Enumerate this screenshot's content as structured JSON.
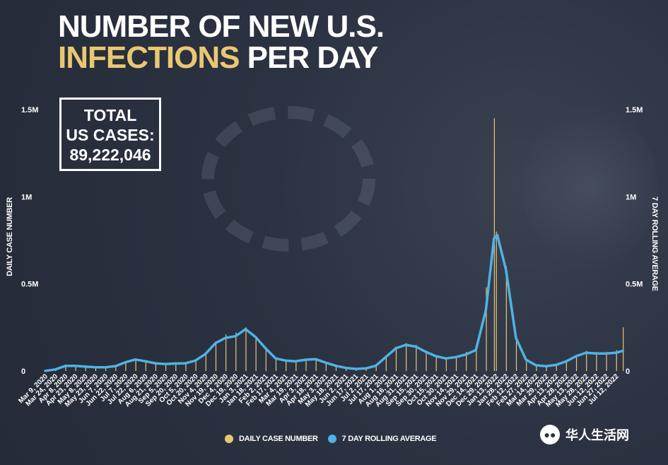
{
  "title": {
    "line1": "NUMBER OF NEW U.S.",
    "line2_highlight": "INFECTIONS",
    "line2_rest": " PER DAY"
  },
  "total_box": {
    "line1": "TOTAL",
    "line2": "US CASES:",
    "value": "89,222,046"
  },
  "legend": {
    "daily": "DAILY CASE NUMBER",
    "rolling": "7 DAY ROLLING AVERAGE"
  },
  "watermark": {
    "text": "华人生活网",
    "icon": "wechat-icon"
  },
  "colors": {
    "background": "#2b3241",
    "bars": "#e9c873",
    "line": "#4fb3e6",
    "title_highlight": "#e9c873",
    "text": "#ffffff"
  },
  "chart_data": {
    "type": "bar+line",
    "y_axis_left_title": "DAILY CASE NUMBER",
    "y_axis_right_title": "7 DAY ROLLING AVERAGE",
    "y_ticks": [
      {
        "value": 0,
        "label": "0"
      },
      {
        "value": 500000,
        "label": "0.5M"
      },
      {
        "value": 1000000,
        "label": "1M"
      },
      {
        "value": 1500000,
        "label": "1.5M"
      }
    ],
    "ylim": [
      0,
      1500000
    ],
    "xlim": [
      "2020-03-09",
      "2022-07-23"
    ],
    "x_ticks": [
      "Mar 9, 2020",
      "Mar 24, 2020",
      "Apr 8, 2020",
      "Apr 23, 2020",
      "May 8, 2020",
      "May 23, 2020",
      "Jun 7, 2020",
      "Jun 22, 2020",
      "Jul 7, 2020",
      "Jul 22, 2020",
      "Aug 6, 2020",
      "Aug 21, 2020",
      "Sep 5, 2020",
      "Sep 20, 2020",
      "Oct 5, 2020",
      "Oct 20, 2020",
      "Nov 4, 2020",
      "Nov 19, 2020",
      "Dec 4, 2020",
      "Dec 19, 2020",
      "Jan 3, 2021",
      "Jan 18, 2021",
      "Feb 2, 2021",
      "Feb 17, 2021",
      "Mar 4, 2021",
      "Mar 19, 2021",
      "Apr 3, 2021",
      "Apr 18, 2021",
      "May 3, 2021",
      "May 18, 2021",
      "Jun 2, 2021",
      "Jun 17, 2021",
      "Jul 2, 2021",
      "Jul 17, 2021",
      "Aug 1, 2021",
      "Aug 16, 2021",
      "Aug 31, 2021",
      "Sep 15, 2021",
      "Sep 30, 2021",
      "Oct 15, 2021",
      "Oct 30, 2021",
      "Nov 14, 2021",
      "Nov 29, 2021",
      "Dec 14, 2021",
      "Dec 29, 2021",
      "Jan 13, 2022",
      "Jan 28, 2022",
      "Feb 12, 2022",
      "Feb 27, 2022",
      "Mar 14, 2022",
      "Mar 29, 2022",
      "Apr 13, 2022",
      "Apr 28, 2022",
      "May 13, 2022",
      "May 28, 2022",
      "Jun 12, 2022",
      "Jun 27, 2022",
      "Jul 12, 2022"
    ],
    "series": [
      {
        "name": "DAILY CASE NUMBER",
        "kind": "bar",
        "points": [
          [
            "2020-03-09",
            1000
          ],
          [
            "2020-03-24",
            11000
          ],
          [
            "2020-04-08",
            31000
          ],
          [
            "2020-04-23",
            29000
          ],
          [
            "2020-05-08",
            26000
          ],
          [
            "2020-05-23",
            22000
          ],
          [
            "2020-06-07",
            20000
          ],
          [
            "2020-06-22",
            30000
          ],
          [
            "2020-07-07",
            55000
          ],
          [
            "2020-07-22",
            67000
          ],
          [
            "2020-08-06",
            55000
          ],
          [
            "2020-08-21",
            45000
          ],
          [
            "2020-09-05",
            40000
          ],
          [
            "2020-09-20",
            44000
          ],
          [
            "2020-10-05",
            45000
          ],
          [
            "2020-10-20",
            62000
          ],
          [
            "2020-11-04",
            105000
          ],
          [
            "2020-11-19",
            170000
          ],
          [
            "2020-12-04",
            210000
          ],
          [
            "2020-12-19",
            220000
          ],
          [
            "2021-01-03",
            250000
          ],
          [
            "2021-01-18",
            200000
          ],
          [
            "2021-02-02",
            130000
          ],
          [
            "2021-02-17",
            75000
          ],
          [
            "2021-03-04",
            65000
          ],
          [
            "2021-03-19",
            60000
          ],
          [
            "2021-04-03",
            70000
          ],
          [
            "2021-04-18",
            72000
          ],
          [
            "2021-05-03",
            50000
          ],
          [
            "2021-05-18",
            30000
          ],
          [
            "2021-06-02",
            18000
          ],
          [
            "2021-06-17",
            12000
          ],
          [
            "2021-07-02",
            18000
          ],
          [
            "2021-07-17",
            35000
          ],
          [
            "2021-08-01",
            90000
          ],
          [
            "2021-08-16",
            140000
          ],
          [
            "2021-08-31",
            160000
          ],
          [
            "2021-09-15",
            150000
          ],
          [
            "2021-09-30",
            115000
          ],
          [
            "2021-10-15",
            90000
          ],
          [
            "2021-10-30",
            75000
          ],
          [
            "2021-11-14",
            85000
          ],
          [
            "2021-11-29",
            110000
          ],
          [
            "2021-12-14",
            130000
          ],
          [
            "2021-12-29",
            480000
          ],
          [
            "2022-01-10",
            1450000
          ],
          [
            "2022-01-13",
            800000
          ],
          [
            "2022-01-28",
            600000
          ],
          [
            "2022-02-12",
            200000
          ],
          [
            "2022-02-27",
            70000
          ],
          [
            "2022-03-14",
            35000
          ],
          [
            "2022-03-29",
            28000
          ],
          [
            "2022-04-13",
            35000
          ],
          [
            "2022-04-28",
            60000
          ],
          [
            "2022-05-13",
            90000
          ],
          [
            "2022-05-28",
            115000
          ],
          [
            "2022-06-12",
            110000
          ],
          [
            "2022-06-27",
            110000
          ],
          [
            "2022-07-12",
            120000
          ],
          [
            "2022-07-22",
            250000
          ]
        ]
      },
      {
        "name": "7 DAY ROLLING AVERAGE",
        "kind": "line",
        "points": [
          [
            "2020-03-09",
            1000
          ],
          [
            "2020-03-24",
            9000
          ],
          [
            "2020-04-08",
            29000
          ],
          [
            "2020-04-23",
            29000
          ],
          [
            "2020-05-08",
            25000
          ],
          [
            "2020-05-23",
            22000
          ],
          [
            "2020-06-07",
            21000
          ],
          [
            "2020-06-22",
            28000
          ],
          [
            "2020-07-07",
            50000
          ],
          [
            "2020-07-22",
            66000
          ],
          [
            "2020-08-06",
            56000
          ],
          [
            "2020-08-21",
            44000
          ],
          [
            "2020-09-05",
            40000
          ],
          [
            "2020-09-20",
            43000
          ],
          [
            "2020-10-05",
            44000
          ],
          [
            "2020-10-20",
            60000
          ],
          [
            "2020-11-04",
            98000
          ],
          [
            "2020-11-19",
            160000
          ],
          [
            "2020-12-04",
            190000
          ],
          [
            "2020-12-19",
            200000
          ],
          [
            "2021-01-03",
            240000
          ],
          [
            "2021-01-18",
            195000
          ],
          [
            "2021-02-02",
            130000
          ],
          [
            "2021-02-17",
            72000
          ],
          [
            "2021-03-04",
            60000
          ],
          [
            "2021-03-19",
            56000
          ],
          [
            "2021-04-03",
            65000
          ],
          [
            "2021-04-18",
            68000
          ],
          [
            "2021-05-03",
            48000
          ],
          [
            "2021-05-18",
            30000
          ],
          [
            "2021-06-02",
            18000
          ],
          [
            "2021-06-17",
            12000
          ],
          [
            "2021-07-02",
            15000
          ],
          [
            "2021-07-17",
            30000
          ],
          [
            "2021-08-01",
            80000
          ],
          [
            "2021-08-16",
            130000
          ],
          [
            "2021-08-31",
            150000
          ],
          [
            "2021-09-15",
            140000
          ],
          [
            "2021-09-30",
            110000
          ],
          [
            "2021-10-15",
            85000
          ],
          [
            "2021-10-30",
            72000
          ],
          [
            "2021-11-14",
            80000
          ],
          [
            "2021-11-29",
            95000
          ],
          [
            "2021-12-14",
            120000
          ],
          [
            "2021-12-29",
            350000
          ],
          [
            "2022-01-10",
            760000
          ],
          [
            "2022-01-15",
            780000
          ],
          [
            "2022-01-28",
            580000
          ],
          [
            "2022-02-12",
            190000
          ],
          [
            "2022-02-27",
            65000
          ],
          [
            "2022-03-14",
            33000
          ],
          [
            "2022-03-29",
            28000
          ],
          [
            "2022-04-13",
            35000
          ],
          [
            "2022-04-28",
            55000
          ],
          [
            "2022-05-13",
            85000
          ],
          [
            "2022-05-28",
            105000
          ],
          [
            "2022-06-12",
            100000
          ],
          [
            "2022-06-27",
            100000
          ],
          [
            "2022-07-12",
            105000
          ],
          [
            "2022-07-22",
            115000
          ]
        ]
      }
    ],
    "legend_position": "bottom-center",
    "grid": false
  }
}
